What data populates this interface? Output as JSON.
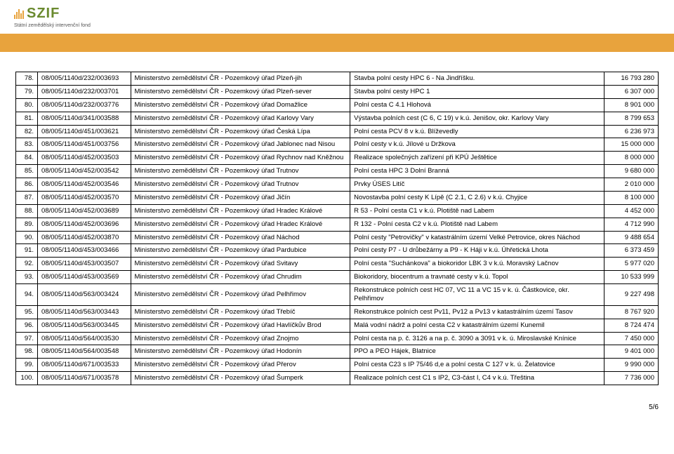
{
  "header": {
    "logo_text": "SZIF",
    "logo_sub": "Státní zemědělský intervenční fond",
    "logo_bar_heights": [
      6,
      10,
      14,
      8,
      12
    ],
    "logo_bar_color": "#e8a33d",
    "logo_text_color": "#6a8a2f"
  },
  "table": {
    "columns": [
      "idx",
      "reg",
      "org",
      "desc",
      "amount"
    ],
    "rows": [
      [
        "78.",
        "08/005/1140d/232/003693",
        "Ministerstvo zemědělství ČR - Pozemkový úřad Plzeň-jih",
        "Stavba polní cesty HPC 6 - Na Jindříšku.",
        "16 793 280"
      ],
      [
        "79.",
        "08/005/1140d/232/003701",
        "Ministerstvo zemědělství ČR - Pozemkový úřad Plzeň-sever",
        "Stavba polní cesty HPC 1",
        "6 307 000"
      ],
      [
        "80.",
        "08/005/1140d/232/003776",
        "Ministerstvo zemědělství ČR - Pozemkový úřad Domažlice",
        "Polní cesta C 4.1 Hlohová",
        "8 901 000"
      ],
      [
        "81.",
        "08/005/1140d/341/003588",
        "Ministerstvo zemědělství ČR - Pozemkový úřad Karlovy Vary",
        "Výstavba polních cest (C 6, C 19) v k.ú. Jenišov, okr. Karlovy Vary",
        "8 799 653"
      ],
      [
        "82.",
        "08/005/1140d/451/003621",
        "Ministerstvo zemědělství ČR - Pozemkový úřad Česká Lípa",
        "Polní cesta PCV 8 v k.ú. Blíževedly",
        "6 236 973"
      ],
      [
        "83.",
        "08/005/1140d/451/003756",
        "Ministerstvo zemědělství ČR - Pozemkový úřad Jablonec nad Nisou",
        "Polní cesty v k.ú. Jílové u Držkova",
        "15 000 000"
      ],
      [
        "84.",
        "08/005/1140d/452/003503",
        "Ministerstvo zemědělství ČR - Pozemkový úřad Rychnov nad Kněžnou",
        "Realizace společných zařízení při KPÚ Ještětice",
        "8 000 000"
      ],
      [
        "85.",
        "08/005/1140d/452/003542",
        "Ministerstvo zemědělství ČR - Pozemkový úřad Trutnov",
        "Polní cesta HPC 3 Dolní Branná",
        "9 680 000"
      ],
      [
        "86.",
        "08/005/1140d/452/003546",
        "Ministerstvo zemědělství ČR - Pozemkový úřad Trutnov",
        "Prvky ÚSES Litíč",
        "2 010 000"
      ],
      [
        "87.",
        "08/005/1140d/452/003570",
        "Ministerstvo zemědělství ČR - Pozemkový úřad Jičín",
        "Novostavba polní cesty K Lípě (C 2.1, C 2.6) v k.ú. Chyjice",
        "8 100 000"
      ],
      [
        "88.",
        "08/005/1140d/452/003689",
        "Ministerstvo zemědělství ČR - Pozemkový úřad Hradec Králové",
        "R 53 - Polní cesta C1 v k.ú. Plotiště nad Labem",
        "4 452 000"
      ],
      [
        "89.",
        "08/005/1140d/452/003696",
        "Ministerstvo zemědělství ČR - Pozemkový úřad Hradec Králové",
        "R 132 - Polní cesta C2 v k.ú. Plotiště nad Labem",
        "4 712 990"
      ],
      [
        "90.",
        "08/005/1140d/452/003870",
        "Ministerstvo zemědělství ČR - Pozemkový úřad Náchod",
        "Polní cesty \"Petrovičky\" v katastrálním území Velké Petrovice, okres Náchod",
        "9 488 654"
      ],
      [
        "91.",
        "08/005/1140d/453/003466",
        "Ministerstvo zemědělství ČR - Pozemkový úřad Pardubice",
        "Polní cesty P7 - U drůbežárny a P9 - K Háji v k.ú. Úhřetická Lhota",
        "6 373 459"
      ],
      [
        "92.",
        "08/005/1140d/453/003507",
        "Ministerstvo zemědělství ČR - Pozemkový úřad Svitavy",
        "Polní cesta \"Suchánkova\" a biokoridor LBK 3 v k.ú. Moravský Lačnov",
        "5 977 020"
      ],
      [
        "93.",
        "08/005/1140d/453/003569",
        "Ministerstvo zemědělství ČR - Pozemkový úřad Chrudim",
        "Biokoridory, biocentrum a travnaté cesty v k.ú. Topol",
        "10 533 999"
      ],
      [
        "94.",
        "08/005/1140d/563/003424",
        "Ministerstvo zemědělství ČR - Pozemkový úřad Pelhřimov",
        "Rekonstrukce polních cest HC 07, VC 11 a VC 15 v k. ú. Částkovice, okr. Pelhřimov",
        "9 227 498"
      ],
      [
        "95.",
        "08/005/1140d/563/003443",
        "Ministerstvo zemědělství ČR - Pozemkový úřad Třebíč",
        "Rekonstrukce polních cest Pv11, Pv12 a Pv13 v katastrálním území Tasov",
        "8 767 920"
      ],
      [
        "96.",
        "08/005/1140d/563/003445",
        "Ministerstvo zemědělství ČR - Pozemkový úřad Havlíčkův Brod",
        "Malá vodní nádrž a polní cesta C2 v katastrálním území Kunemil",
        "8 724 474"
      ],
      [
        "97.",
        "08/005/1140d/564/003530",
        "Ministerstvo zemědělství ČR - Pozemkový úřad Znojmo",
        "Polní cesta na p. č. 3126 a na p. č. 3090 a 3091 v k. ú. Miroslavské Knínice",
        "7 450 000"
      ],
      [
        "98.",
        "08/005/1140d/564/003548",
        "Ministerstvo zemědělství ČR - Pozemkový úřad Hodonín",
        "PPO a PEO Hájek, Blatnice",
        "9 401 000"
      ],
      [
        "99.",
        "08/005/1140d/671/003533",
        "Ministerstvo zemědělství ČR - Pozemkový úřad Přerov",
        "Polní cesta C23 s IP 75/46 d,e a polní cesta C 127 v k. ú. Želatovice",
        "9 990 000"
      ],
      [
        "100.",
        "08/005/1140d/671/003578",
        "Ministerstvo zemědělství ČR - Pozemkový úřad Šumperk",
        "Realizace polních cest C1 s IP2, C3-část I, C4 v k.ú. Třeština",
        "7 736 000"
      ]
    ]
  },
  "page_num": "5/6",
  "col_classes": [
    "c0",
    "c1",
    "c2",
    "c3",
    "c4"
  ]
}
